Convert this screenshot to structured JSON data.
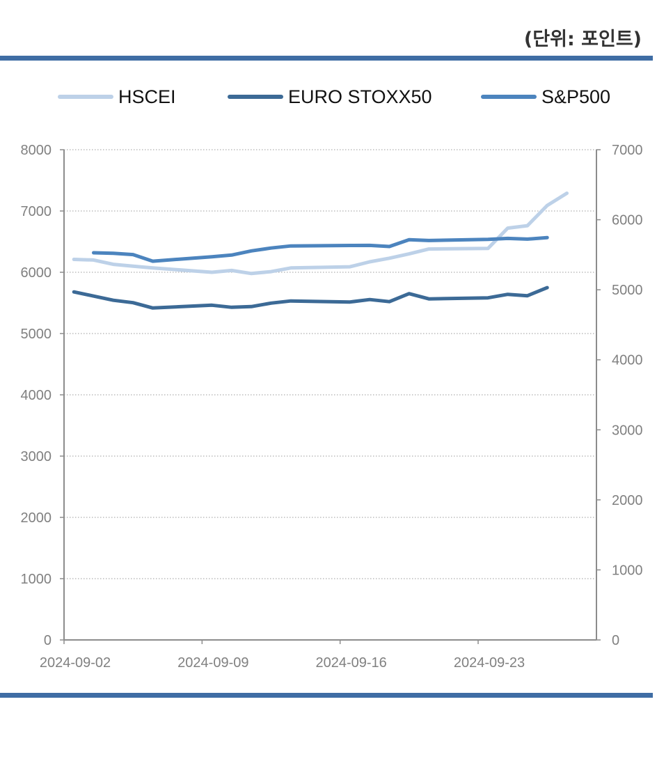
{
  "unit_label": "(단위: 포인트)",
  "colors": {
    "rule": "#3F6DA4",
    "axis": "#8C8C8C",
    "grid": "#9A9A9A",
    "tick_text": "#808080"
  },
  "chart_data": {
    "type": "line",
    "title": "",
    "xlabel": "",
    "ylabel": "",
    "x_ticks": [
      "2024-09-02",
      "2024-09-09",
      "2024-09-16",
      "2024-09-23"
    ],
    "x_range": [
      "2024-09-02",
      "2024-09-28"
    ],
    "y_left": {
      "range": [
        0,
        8000
      ],
      "ticks": [
        0,
        1000,
        2000,
        3000,
        4000,
        5000,
        6000,
        7000,
        8000
      ]
    },
    "y_right": {
      "range": [
        0,
        7000
      ],
      "ticks": [
        0,
        1000,
        2000,
        3000,
        4000,
        5000,
        6000,
        7000
      ]
    },
    "grid": "horizontal dotted",
    "legend_position": "top",
    "series": [
      {
        "name": "HSCEI",
        "axis": "left",
        "color": "#BDD1E8",
        "points": [
          [
            "2024-09-02",
            6210
          ],
          [
            "2024-09-03",
            6200
          ],
          [
            "2024-09-04",
            6130
          ],
          [
            "2024-09-05",
            6100
          ],
          [
            "2024-09-06",
            6070
          ],
          [
            "2024-09-09",
            6000
          ],
          [
            "2024-09-10",
            6030
          ],
          [
            "2024-09-11",
            5980
          ],
          [
            "2024-09-12",
            6010
          ],
          [
            "2024-09-13",
            6070
          ],
          [
            "2024-09-16",
            6090
          ],
          [
            "2024-09-17",
            6170
          ],
          [
            "2024-09-18",
            6230
          ],
          [
            "2024-09-19",
            6300
          ],
          [
            "2024-09-20",
            6380
          ],
          [
            "2024-09-23",
            6390
          ],
          [
            "2024-09-24",
            6720
          ],
          [
            "2024-09-25",
            6760
          ],
          [
            "2024-09-26",
            7090
          ],
          [
            "2024-09-27",
            7290
          ]
        ]
      },
      {
        "name": "EURO STOXX50",
        "axis": "right",
        "color": "#3C6A96",
        "points": [
          [
            "2024-09-02",
            4970
          ],
          [
            "2024-09-03",
            4910
          ],
          [
            "2024-09-04",
            4850
          ],
          [
            "2024-09-05",
            4815
          ],
          [
            "2024-09-06",
            4740
          ],
          [
            "2024-09-09",
            4780
          ],
          [
            "2024-09-10",
            4750
          ],
          [
            "2024-09-11",
            4760
          ],
          [
            "2024-09-12",
            4810
          ],
          [
            "2024-09-13",
            4840
          ],
          [
            "2024-09-16",
            4825
          ],
          [
            "2024-09-17",
            4860
          ],
          [
            "2024-09-18",
            4830
          ],
          [
            "2024-09-19",
            4945
          ],
          [
            "2024-09-20",
            4870
          ],
          [
            "2024-09-23",
            4885
          ],
          [
            "2024-09-24",
            4935
          ],
          [
            "2024-09-25",
            4915
          ],
          [
            "2024-09-26",
            5030
          ]
        ]
      },
      {
        "name": "S&P500",
        "axis": "right",
        "color": "#4C84BE",
        "points": [
          [
            "2024-09-03",
            5528
          ],
          [
            "2024-09-04",
            5520
          ],
          [
            "2024-09-05",
            5503
          ],
          [
            "2024-09-06",
            5408
          ],
          [
            "2024-09-09",
            5472
          ],
          [
            "2024-09-10",
            5496
          ],
          [
            "2024-09-11",
            5555
          ],
          [
            "2024-09-12",
            5596
          ],
          [
            "2024-09-13",
            5626
          ],
          [
            "2024-09-16",
            5633
          ],
          [
            "2024-09-17",
            5634
          ],
          [
            "2024-09-18",
            5618
          ],
          [
            "2024-09-19",
            5714
          ],
          [
            "2024-09-20",
            5703
          ],
          [
            "2024-09-23",
            5719
          ],
          [
            "2024-09-24",
            5733
          ],
          [
            "2024-09-25",
            5723
          ],
          [
            "2024-09-26",
            5745
          ]
        ]
      }
    ]
  }
}
